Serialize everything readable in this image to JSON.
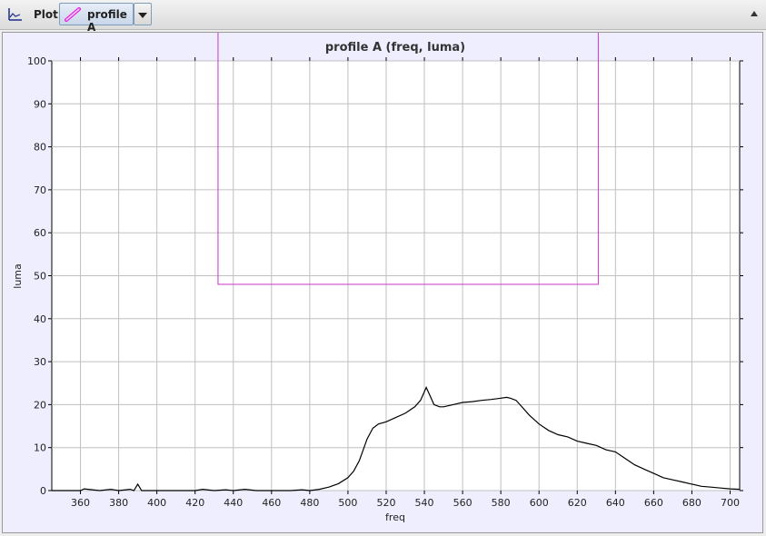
{
  "toolbar": {
    "plot_label": "Plot",
    "profile_label": "profile A"
  },
  "colors": {
    "selection_box": "#cc33cc",
    "series_line": "#000000",
    "plot_background": "#eeeeff",
    "grid": "#c0c0c0"
  },
  "chart_data": {
    "type": "line",
    "title": "profile A (freq, luma)",
    "xlabel": "freq",
    "ylabel": "luma",
    "xlim": [
      345,
      705
    ],
    "ylim": [
      0,
      100
    ],
    "x_ticks": [
      360,
      380,
      400,
      420,
      440,
      460,
      480,
      500,
      520,
      540,
      560,
      580,
      600,
      620,
      640,
      660,
      680,
      700
    ],
    "y_ticks": [
      0,
      10,
      20,
      30,
      40,
      50,
      60,
      70,
      80,
      90,
      100
    ],
    "grid": true,
    "selection_box": {
      "x": [
        432,
        631
      ],
      "y": [
        48,
        110
      ]
    },
    "series": [
      {
        "x": [
          345,
          360,
          362,
          370,
          376,
          380,
          386,
          388,
          390,
          392,
          400,
          420,
          424,
          430,
          436,
          440,
          446,
          452,
          460,
          470,
          476,
          480,
          485,
          490,
          495,
          500,
          503,
          506,
          510,
          513,
          516,
          520,
          525,
          530,
          535,
          538,
          540,
          541,
          543,
          545,
          548,
          550,
          555,
          560,
          565,
          570,
          575,
          580,
          583,
          585,
          588,
          590,
          595,
          600,
          605,
          610,
          615,
          620,
          625,
          630,
          635,
          640,
          645,
          650,
          655,
          660,
          665,
          670,
          675,
          680,
          685,
          690,
          695,
          700,
          705
        ],
        "y": [
          0,
          0,
          0.4,
          0,
          0.3,
          0,
          0.3,
          0,
          1.5,
          0,
          0,
          0,
          0.3,
          0,
          0.2,
          0,
          0.3,
          0,
          0,
          0,
          0.2,
          0,
          0.3,
          0.8,
          1.6,
          3,
          4.5,
          7,
          12,
          14.5,
          15.5,
          16,
          17,
          18,
          19.5,
          21,
          23,
          24,
          22,
          20,
          19.5,
          19.5,
          20,
          20.5,
          20.7,
          21,
          21.2,
          21.5,
          21.7,
          21.5,
          21,
          20,
          17.5,
          15.5,
          14,
          13,
          12.5,
          11.5,
          11,
          10.5,
          9.5,
          9,
          7.5,
          6,
          5,
          4,
          3,
          2.5,
          2,
          1.5,
          1,
          0.8,
          0.6,
          0.4,
          0.3
        ]
      }
    ]
  }
}
